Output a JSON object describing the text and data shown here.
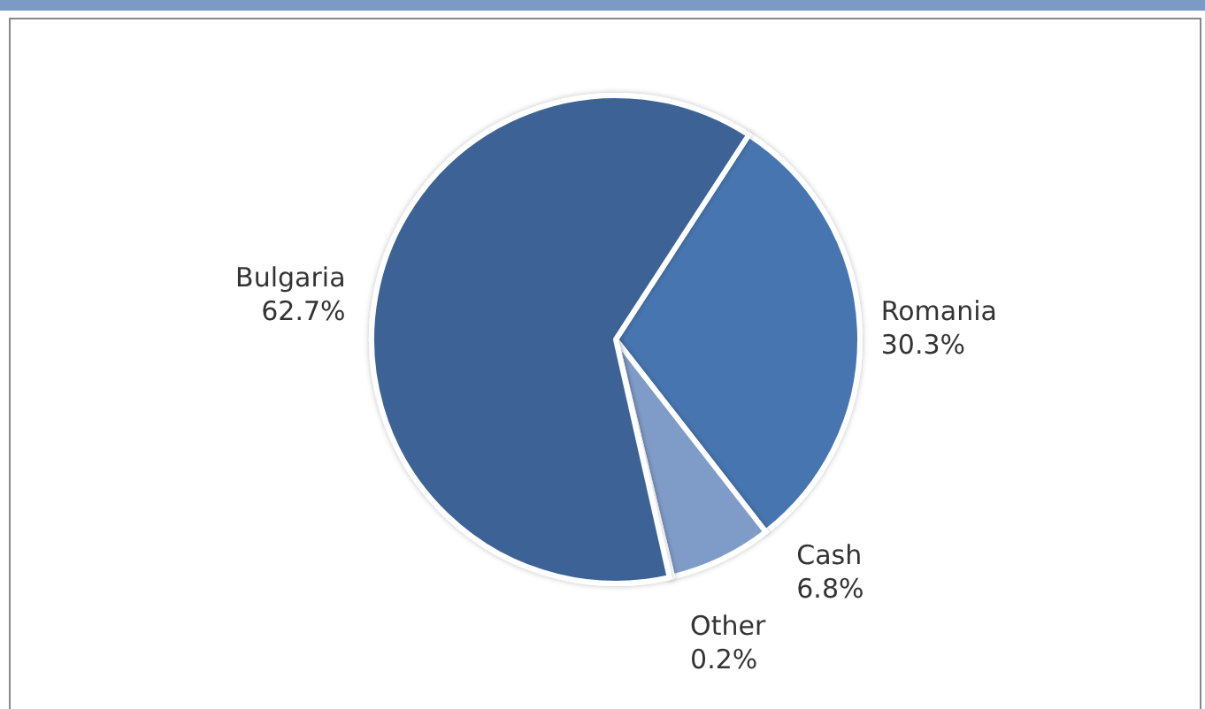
{
  "chart_data": {
    "type": "pie",
    "categories": [
      "Romania",
      "Cash",
      "Other",
      "Bulgaria"
    ],
    "values": [
      30.3,
      6.8,
      0.2,
      62.7
    ],
    "value_labels": [
      "30.3%",
      "6.8%",
      "0.2%",
      "62.7%"
    ],
    "colors": [
      "#4675b0",
      "#7f9cc8",
      "#a3b6d6",
      "#3c6496"
    ],
    "legend": false
  }
}
